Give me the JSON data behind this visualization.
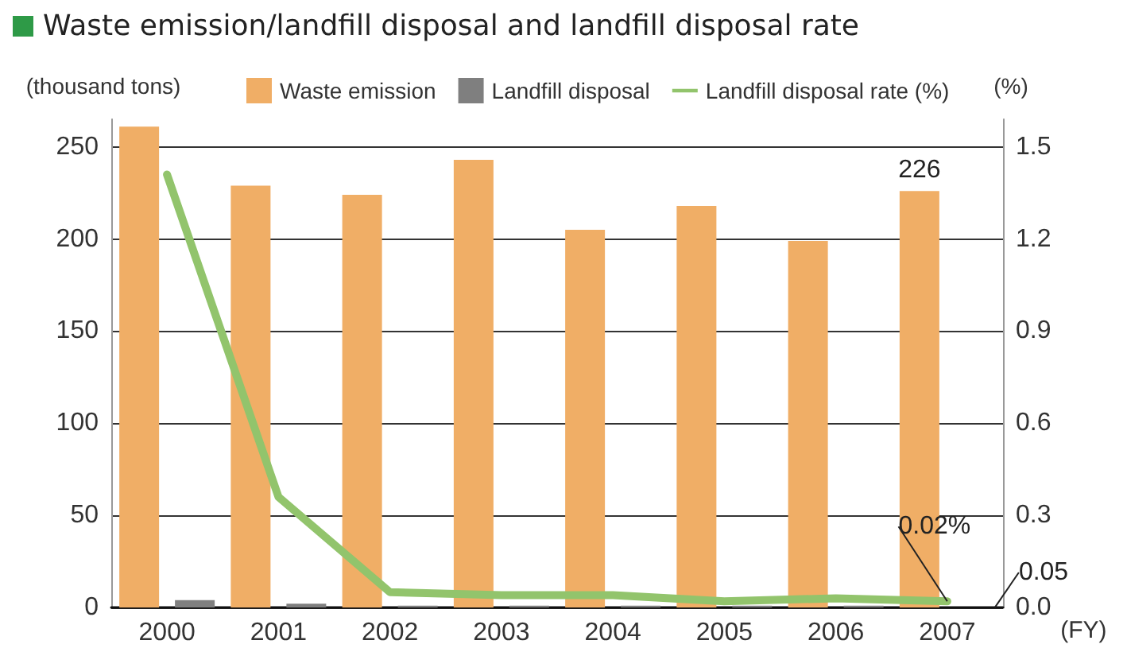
{
  "chart_data": {
    "type": "bar",
    "title": "Waste emission/landfill disposal and landfill disposal rate",
    "categories": [
      "2000",
      "2001",
      "2002",
      "2003",
      "2004",
      "2005",
      "2006",
      "2007"
    ],
    "xlabel": "(FY)",
    "ylabel": "(thousand tons)",
    "y2label": "(%)",
    "series": [
      {
        "name": "Waste emission",
        "color": "#f0ae66",
        "values": [
          261,
          229,
          224,
          243,
          205,
          218,
          199,
          226
        ],
        "value_labels": [
          null,
          null,
          null,
          null,
          null,
          null,
          null,
          "226"
        ]
      },
      {
        "name": "Landfill disposal",
        "color": "#7f7f7f",
        "values": [
          4,
          2,
          1,
          1,
          1,
          1,
          1,
          0.05
        ],
        "value_labels": [
          null,
          null,
          null,
          null,
          null,
          null,
          null,
          "0.05"
        ]
      },
      {
        "name": "Landfill disposal rate (%)",
        "type": "line",
        "axis": "y2",
        "color": "#92c46c",
        "values": [
          1.41,
          0.36,
          0.05,
          0.04,
          0.04,
          0.02,
          0.03,
          0.02
        ],
        "value_labels": [
          null,
          null,
          null,
          null,
          null,
          null,
          null,
          "0.02%"
        ]
      }
    ],
    "ylim": [
      0,
      265
    ],
    "yticks": [
      0,
      50,
      100,
      150,
      200,
      250
    ],
    "y2lim": [
      0,
      1.59
    ],
    "y2ticks": [
      {
        "value": 0,
        "label": "0.0"
      },
      0.3,
      0.6,
      0.9,
      1.2,
      1.5
    ],
    "grid": "y",
    "legend": "top",
    "marker": "none",
    "line_style": "solid"
  }
}
